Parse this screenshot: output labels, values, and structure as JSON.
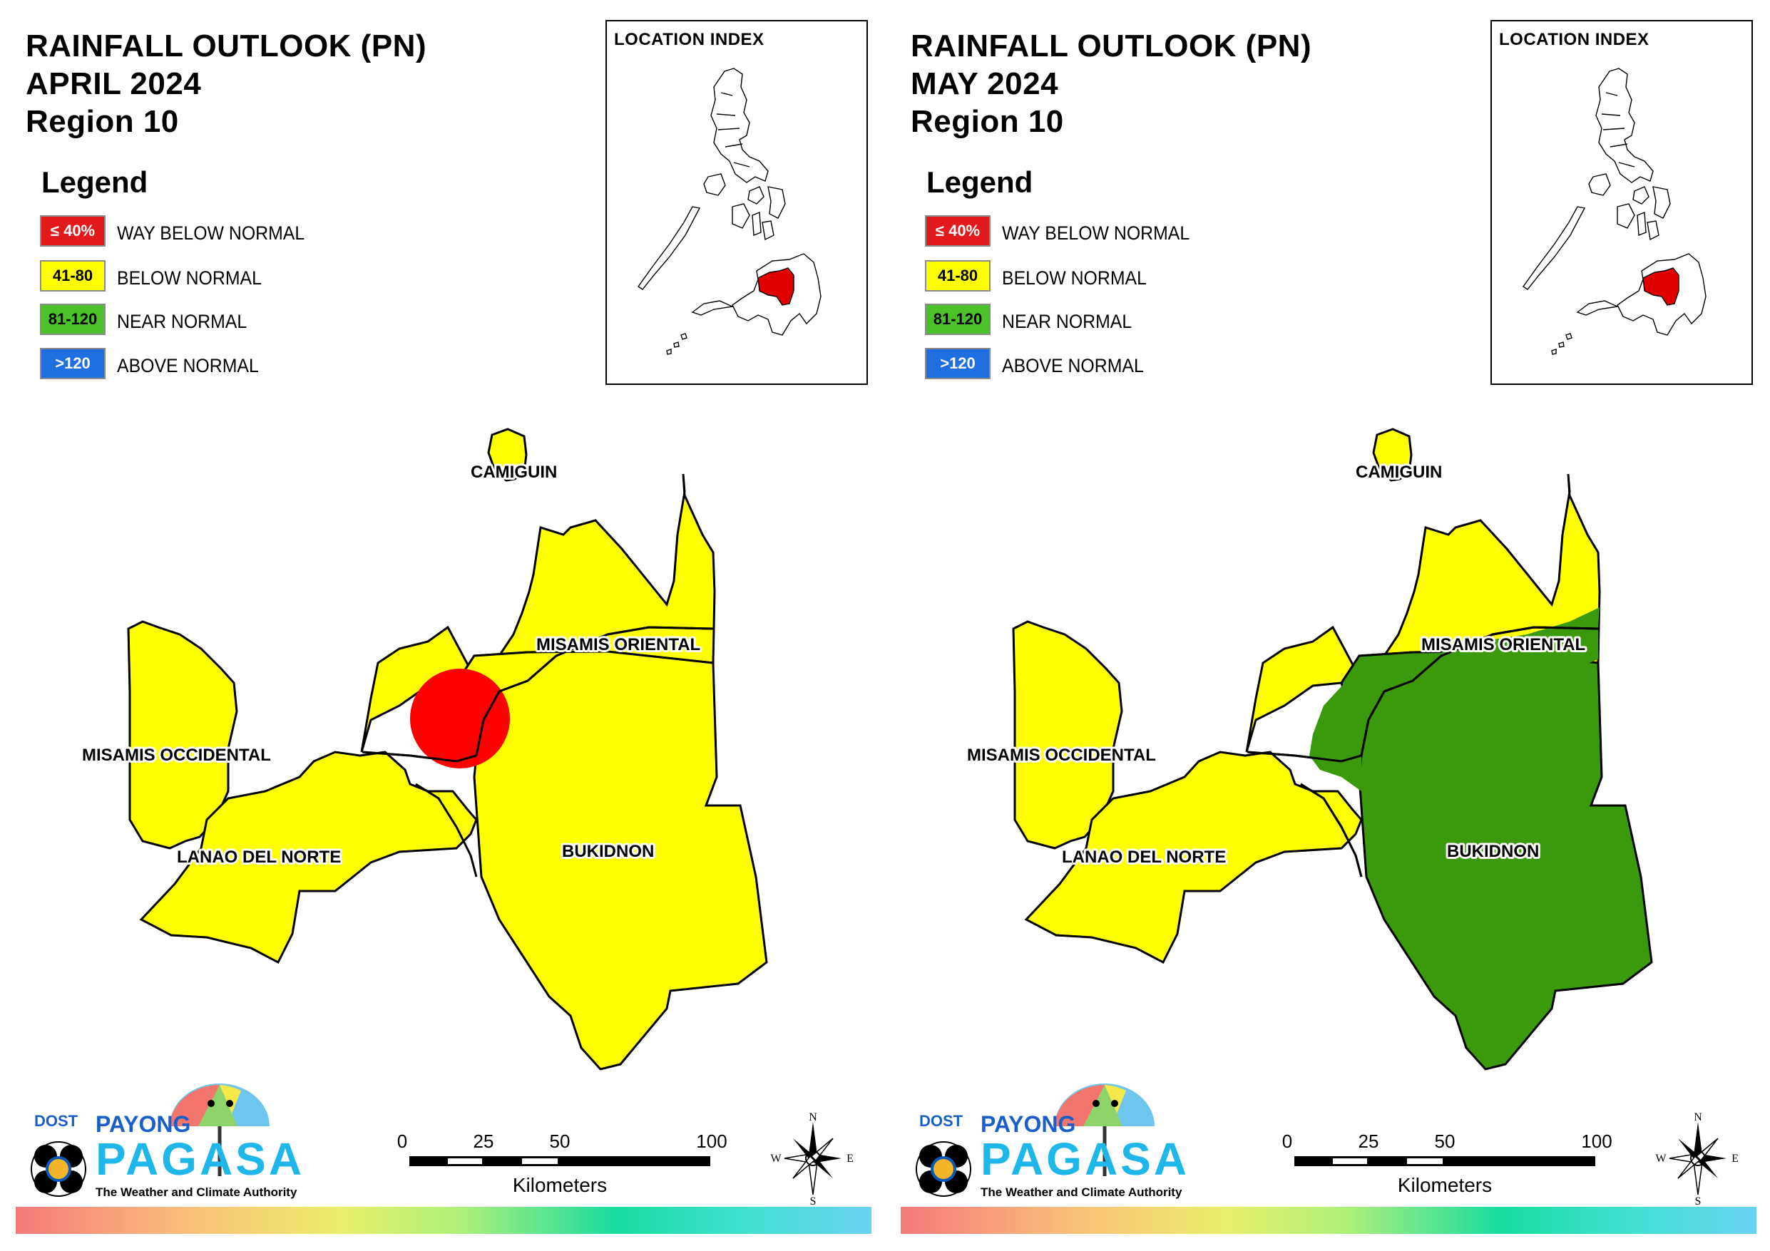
{
  "panels": [
    {
      "title_line1": "RAINFALL OUTLOOK (PN)",
      "title_line2": "APRIL 2024",
      "title_line3": "Region 10",
      "legend_title": "Legend",
      "legend": [
        {
          "range": "≤ 40%",
          "label": "WAY BELOW NORMAL",
          "color": "#e31a1c"
        },
        {
          "range": "41-80",
          "label": "BELOW NORMAL",
          "color": "#ffff00"
        },
        {
          "range": "81-120",
          "label": "NEAR NORMAL",
          "color": "#4cc22a"
        },
        {
          "range": ">120",
          "label": "ABOVE NORMAL",
          "color": "#1f6fe0"
        }
      ],
      "inset_title": "LOCATION INDEX",
      "provinces": {
        "camiguin": "CAMIGUIN",
        "misamis_oriental": "MISAMIS ORIENTAL",
        "misamis_occidental": "MISAMIS OCCIDENTAL",
        "lanao_del_norte": "LANAO DEL NORTE",
        "bukidnon": "BUKIDNON"
      },
      "outlook": {
        "camiguin": "BELOW NORMAL",
        "misamis_oriental": "BELOW NORMAL",
        "misamis_occidental": "BELOW NORMAL",
        "lanao_del_norte": "BELOW NORMAL",
        "bukidnon": "BELOW NORMAL",
        "spot": "WAY BELOW NORMAL"
      },
      "scale": {
        "ticks": [
          "0",
          "25",
          "50",
          "100"
        ],
        "unit": "Kilometers"
      },
      "compass": {
        "n": "N",
        "s": "S",
        "e": "E",
        "w": "W"
      },
      "logo": {
        "dost": "DOST",
        "payong": "PAYONG",
        "pagasa": "PAGASA",
        "tagline": "The Weather and Climate Authority"
      }
    },
    {
      "title_line1": "RAINFALL OUTLOOK (PN)",
      "title_line2": "MAY 2024",
      "title_line3": "Region 10",
      "legend_title": "Legend",
      "legend": [
        {
          "range": "≤ 40%",
          "label": "WAY BELOW NORMAL",
          "color": "#e31a1c"
        },
        {
          "range": "41-80",
          "label": "BELOW NORMAL",
          "color": "#ffff00"
        },
        {
          "range": "81-120",
          "label": "NEAR NORMAL",
          "color": "#4cc22a"
        },
        {
          "range": ">120",
          "label": "ABOVE NORMAL",
          "color": "#1f6fe0"
        }
      ],
      "inset_title": "LOCATION INDEX",
      "provinces": {
        "camiguin": "CAMIGUIN",
        "misamis_oriental": "MISAMIS ORIENTAL",
        "misamis_occidental": "MISAMIS OCCIDENTAL",
        "lanao_del_norte": "LANAO DEL NORTE",
        "bukidnon": "BUKIDNON"
      },
      "outlook": {
        "camiguin": "BELOW NORMAL",
        "misamis_oriental": "BELOW NORMAL",
        "misamis_occidental": "BELOW NORMAL",
        "lanao_del_norte": "BELOW NORMAL",
        "bukidnon": "NEAR NORMAL",
        "spot": "NEAR NORMAL"
      },
      "scale": {
        "ticks": [
          "0",
          "25",
          "50",
          "100"
        ],
        "unit": "Kilometers"
      },
      "compass": {
        "n": "N",
        "s": "S",
        "e": "E",
        "w": "W"
      },
      "logo": {
        "dost": "DOST",
        "payong": "PAYONG",
        "pagasa": "PAGASA",
        "tagline": "The Weather and Climate Authority"
      }
    }
  ],
  "colors": {
    "yellow": "#ffff00",
    "red": "#ff0000",
    "green": "#3a9a0c",
    "highlight": "#e00000"
  }
}
